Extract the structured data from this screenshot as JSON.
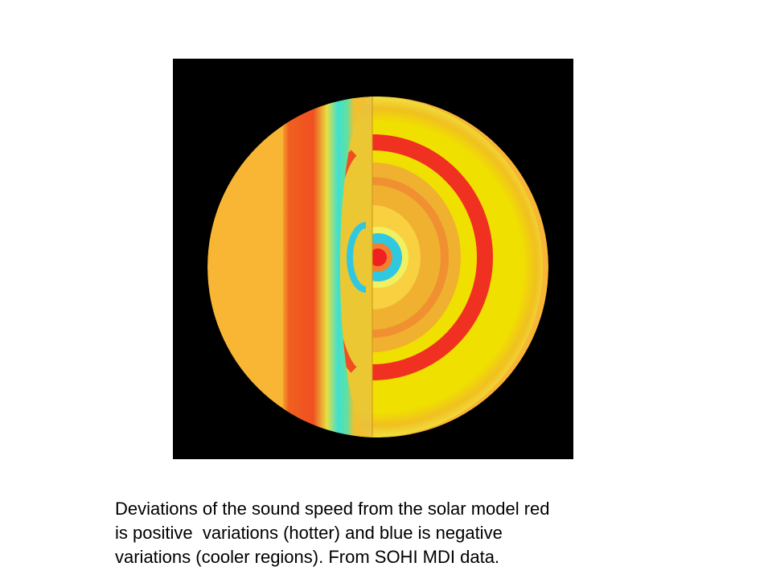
{
  "caption": {
    "lines": [
      "Deviations of the sound speed from the solar model red",
      "is positive  variations (hotter) and blue is negative",
      "variations (cooler regions). From SOHI MDI data."
    ]
  }
}
